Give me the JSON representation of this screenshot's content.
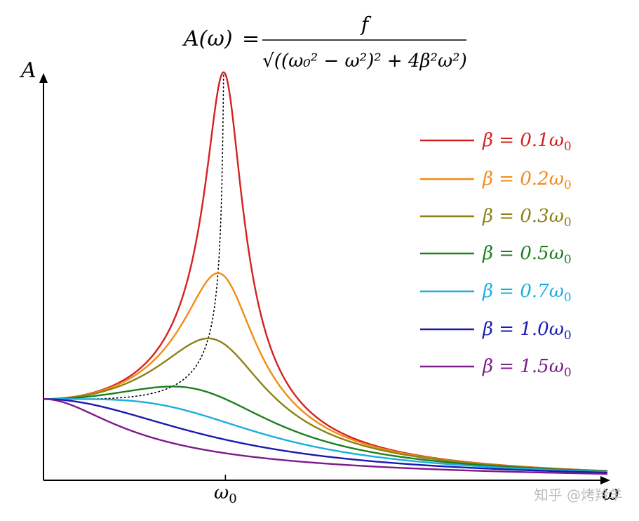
{
  "chart_data": {
    "type": "line",
    "title": {
      "lhs": "A(ω)",
      "eq": "=",
      "numerator": "f",
      "denominator": "√((ω₀² − ω²)² + 4β²ω²)"
    },
    "ylabel": "A",
    "xlabel": "ω",
    "x_ticks": [
      {
        "label_main": "ω",
        "label_sub": "0",
        "x": 1.0
      }
    ],
    "xlim": [
      0.0,
      3.1
    ],
    "ylim": [
      0.0,
      5.05
    ],
    "f": 1.0,
    "omega0": 1.0,
    "series": [
      {
        "name": "β = 0.1ω0",
        "beta": 0.1,
        "color": "#d62020",
        "legend_prefix": "β = 0.1ω",
        "legend_sub": "0"
      },
      {
        "name": "β = 0.2ω0",
        "beta": 0.2,
        "color": "#f28c13",
        "legend_prefix": "β = 0.2ω",
        "legend_sub": "0"
      },
      {
        "name": "β = 0.3ω0",
        "beta": 0.3,
        "color": "#8c8214",
        "legend_prefix": "β = 0.3ω",
        "legend_sub": "0"
      },
      {
        "name": "β = 0.5ω0",
        "beta": 0.5,
        "color": "#1e7f1e",
        "legend_prefix": "β = 0.5ω",
        "legend_sub": "0"
      },
      {
        "name": "β = 0.7ω0",
        "beta": 0.7,
        "color": "#1aaee0",
        "legend_prefix": "β = 0.7ω",
        "legend_sub": "0"
      },
      {
        "name": "β = 1.0ω0",
        "beta": 1.0,
        "color": "#1a1ab0",
        "legend_prefix": "β = 1.0ω",
        "legend_sub": "0"
      },
      {
        "name": "β = 1.5ω0",
        "beta": 1.5,
        "color": "#7d1a8c",
        "legend_prefix": "β = 1.5ω",
        "legend_sub": "0"
      }
    ],
    "resonance_locus": {
      "style": "dotted",
      "color": "#000000"
    },
    "legend_position": "top-right",
    "grid": false,
    "watermark": "知乎 @烤羚羊"
  }
}
